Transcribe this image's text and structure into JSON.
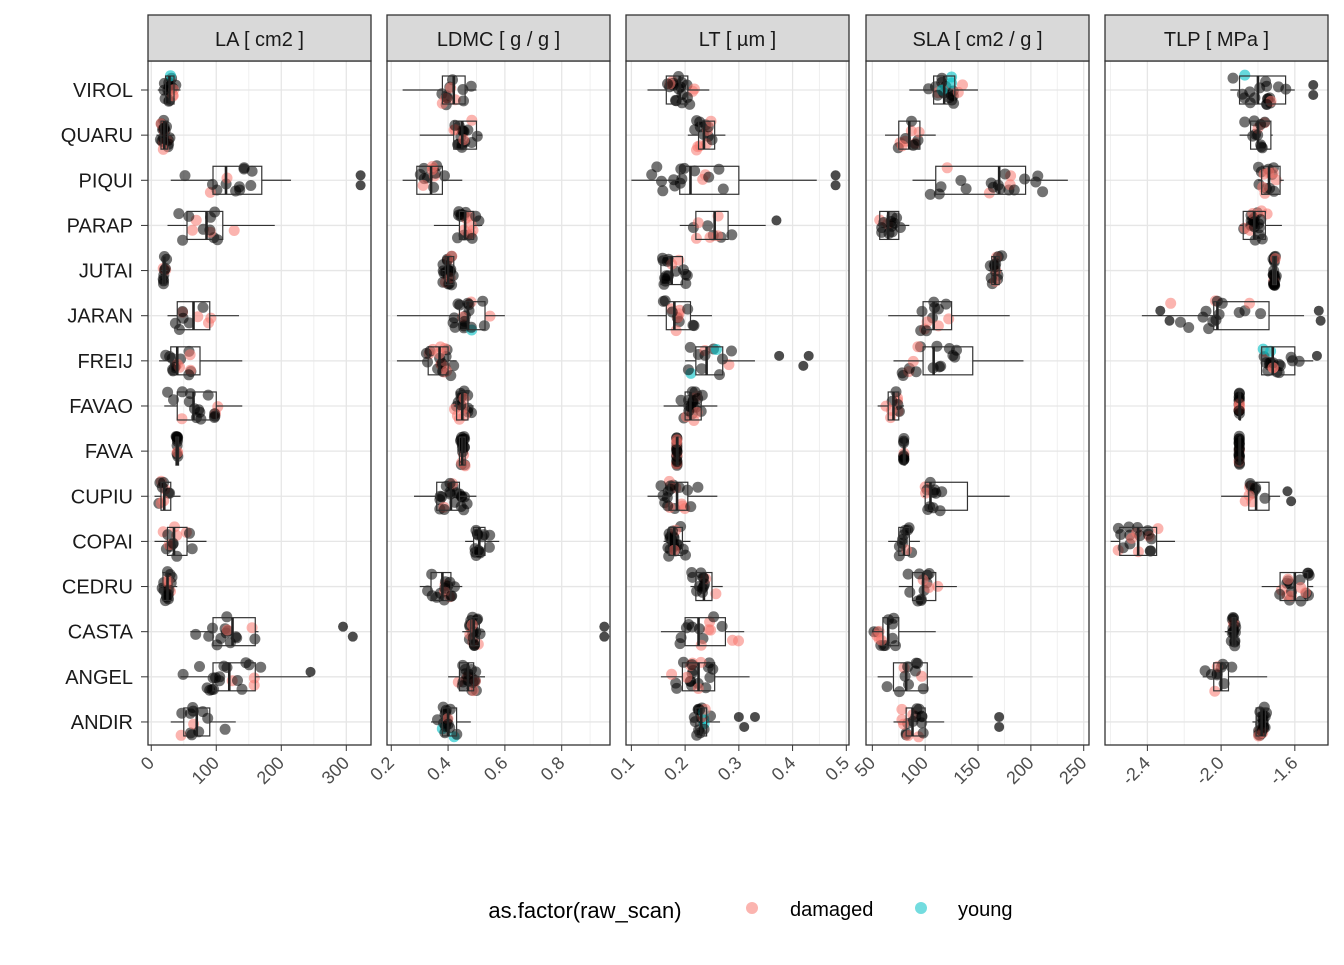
{
  "chart_data": {
    "type": "faceted boxplot with jittered points",
    "species": [
      "VIROL",
      "QUARU",
      "PIQUI",
      "PARAP",
      "JUTAI",
      "JARAN",
      "FREIJ",
      "FAVAO",
      "FAVA",
      "CUPIU",
      "COPAI",
      "CEDRU",
      "CASTA",
      "ANGEL",
      "ANDIR"
    ],
    "legend": {
      "title": "as.factor(raw_scan)",
      "entries": [
        {
          "label": "damaged",
          "color": "#F8766D"
        },
        {
          "label": "young",
          "color": "#00BFC4"
        }
      ],
      "position": "bottom"
    },
    "colors": {
      "normal": "#000000",
      "damaged": "#F8766D",
      "young": "#00BFC4",
      "strip_fill": "#D9D9D9"
    },
    "grid": true,
    "facets": [
      {
        "title": "LA [ cm2 ]",
        "xlim": [
          -5,
          338
        ],
        "ticks": [
          0,
          100,
          200,
          300
        ],
        "tick_labels": [
          "0",
          "100",
          "200",
          "300"
        ],
        "boxes": [
          {
            "species": "VIROL",
            "q1": 22,
            "med": 28,
            "q3": 35,
            "lo": 10,
            "hi": 45
          },
          {
            "species": "QUARU",
            "q1": 15,
            "med": 20,
            "q3": 25,
            "lo": 8,
            "hi": 35
          },
          {
            "species": "PIQUI",
            "q1": 95,
            "med": 115,
            "q3": 170,
            "lo": 30,
            "hi": 215
          },
          {
            "species": "PARAP",
            "q1": 55,
            "med": 85,
            "q3": 110,
            "lo": 25,
            "hi": 190
          },
          {
            "species": "JUTAI",
            "q1": 18,
            "med": 20,
            "q3": 22,
            "lo": 15,
            "hi": 25
          },
          {
            "species": "JARAN",
            "q1": 40,
            "med": 65,
            "q3": 90,
            "lo": 25,
            "hi": 135
          },
          {
            "species": "FREIJ",
            "q1": 30,
            "med": 40,
            "q3": 75,
            "lo": 12,
            "hi": 140
          },
          {
            "species": "FAVAO",
            "q1": 40,
            "med": 65,
            "q3": 100,
            "lo": 20,
            "hi": 140
          },
          {
            "species": "FAVA",
            "q1": 38,
            "med": 40,
            "q3": 42,
            "lo": 38,
            "hi": 42
          },
          {
            "species": "CUPIU",
            "q1": 15,
            "med": 20,
            "q3": 30,
            "lo": 5,
            "hi": 45
          },
          {
            "species": "COPAI",
            "q1": 25,
            "med": 35,
            "q3": 55,
            "lo": 5,
            "hi": 85
          },
          {
            "species": "CEDRU",
            "q1": 18,
            "med": 25,
            "q3": 32,
            "lo": 12,
            "hi": 40
          },
          {
            "species": "CASTA",
            "q1": 95,
            "med": 125,
            "q3": 160,
            "lo": 60,
            "hi": 165
          },
          {
            "species": "ANGEL",
            "q1": 95,
            "med": 120,
            "q3": 160,
            "lo": 45,
            "hi": 245
          },
          {
            "species": "ANDIR",
            "q1": 50,
            "med": 70,
            "q3": 90,
            "lo": 30,
            "hi": 130
          }
        ],
        "extra_points": [
          {
            "species": "PIQUI",
            "values": [
              322,
              322
            ]
          },
          {
            "species": "CASTA",
            "values": [
              295,
              310
            ]
          },
          {
            "species": "ANGEL",
            "values": [
              245
            ]
          }
        ]
      },
      {
        "title": "LDMC [ g / g ]",
        "xlim": [
          0.185,
          0.97
        ],
        "ticks": [
          0.2,
          0.4,
          0.6,
          0.8
        ],
        "tick_labels": [
          "0.2",
          "0.4",
          "0.6",
          "0.8"
        ],
        "boxes": [
          {
            "species": "VIROL",
            "q1": 0.38,
            "med": 0.42,
            "q3": 0.46,
            "lo": 0.24,
            "hi": 0.5
          },
          {
            "species": "QUARU",
            "q1": 0.42,
            "med": 0.45,
            "q3": 0.5,
            "lo": 0.3,
            "hi": 0.52
          },
          {
            "species": "PIQUI",
            "q1": 0.29,
            "med": 0.34,
            "q3": 0.38,
            "lo": 0.24,
            "hi": 0.45
          },
          {
            "species": "PARAP",
            "q1": 0.44,
            "med": 0.46,
            "q3": 0.49,
            "lo": 0.35,
            "hi": 0.52
          },
          {
            "species": "JUTAI",
            "q1": 0.39,
            "med": 0.4,
            "q3": 0.42,
            "lo": 0.38,
            "hi": 0.42
          },
          {
            "species": "JARAN",
            "q1": 0.44,
            "med": 0.47,
            "q3": 0.53,
            "lo": 0.22,
            "hi": 0.6
          },
          {
            "species": "FREIJ",
            "q1": 0.33,
            "med": 0.37,
            "q3": 0.4,
            "lo": 0.22,
            "hi": 0.43
          },
          {
            "species": "FAVAO",
            "q1": 0.43,
            "med": 0.45,
            "q3": 0.47,
            "lo": 0.42,
            "hi": 0.49
          },
          {
            "species": "FAVA",
            "q1": 0.44,
            "med": 0.45,
            "q3": 0.46,
            "lo": 0.44,
            "hi": 0.46
          },
          {
            "species": "CUPIU",
            "q1": 0.36,
            "med": 0.41,
            "q3": 0.44,
            "lo": 0.28,
            "hi": 0.5
          },
          {
            "species": "COPAI",
            "q1": 0.49,
            "med": 0.51,
            "q3": 0.53,
            "lo": 0.46,
            "hi": 0.58
          },
          {
            "species": "CEDRU",
            "q1": 0.34,
            "med": 0.38,
            "q3": 0.41,
            "lo": 0.3,
            "hi": 0.45
          },
          {
            "species": "CASTA",
            "q1": 0.48,
            "med": 0.49,
            "q3": 0.51,
            "lo": 0.45,
            "hi": 0.53
          },
          {
            "species": "ANGEL",
            "q1": 0.44,
            "med": 0.47,
            "q3": 0.49,
            "lo": 0.4,
            "hi": 0.53
          },
          {
            "species": "ANDIR",
            "q1": 0.38,
            "med": 0.4,
            "q3": 0.43,
            "lo": 0.34,
            "hi": 0.48
          }
        ],
        "extra_points": [
          {
            "species": "CASTA",
            "values": [
              0.95,
              0.95
            ]
          }
        ]
      },
      {
        "title": "LT [ µm ]",
        "xlim": [
          0.09,
          0.505
        ],
        "ticks": [
          0.1,
          0.2,
          0.3,
          0.4,
          0.5
        ],
        "tick_labels": [
          "0.1",
          "0.2",
          "0.3",
          "0.4",
          "0.5"
        ],
        "boxes": [
          {
            "species": "VIROL",
            "q1": 0.165,
            "med": 0.19,
            "q3": 0.205,
            "lo": 0.13,
            "hi": 0.245
          },
          {
            "species": "QUARU",
            "q1": 0.225,
            "med": 0.235,
            "q3": 0.255,
            "lo": 0.205,
            "hi": 0.275
          },
          {
            "species": "PIQUI",
            "q1": 0.19,
            "med": 0.21,
            "q3": 0.3,
            "lo": 0.1,
            "hi": 0.445
          },
          {
            "species": "PARAP",
            "q1": 0.22,
            "med": 0.255,
            "q3": 0.28,
            "lo": 0.19,
            "hi": 0.35
          },
          {
            "species": "JUTAI",
            "q1": 0.155,
            "med": 0.175,
            "q3": 0.195,
            "lo": 0.155,
            "hi": 0.205
          },
          {
            "species": "JARAN",
            "q1": 0.165,
            "med": 0.18,
            "q3": 0.21,
            "lo": 0.13,
            "hi": 0.25
          },
          {
            "species": "FREIJ",
            "q1": 0.22,
            "med": 0.24,
            "q3": 0.27,
            "lo": 0.2,
            "hi": 0.33
          },
          {
            "species": "FAVAO",
            "q1": 0.2,
            "med": 0.21,
            "q3": 0.23,
            "lo": 0.16,
            "hi": 0.26
          },
          {
            "species": "FAVA",
            "q1": 0.185,
            "med": 0.185,
            "q3": 0.185,
            "lo": 0.185,
            "hi": 0.185
          },
          {
            "species": "CUPIU",
            "q1": 0.17,
            "med": 0.185,
            "q3": 0.205,
            "lo": 0.13,
            "hi": 0.26
          },
          {
            "species": "COPAI",
            "q1": 0.17,
            "med": 0.18,
            "q3": 0.195,
            "lo": 0.16,
            "hi": 0.21
          },
          {
            "species": "CEDRU",
            "q1": 0.22,
            "med": 0.235,
            "q3": 0.25,
            "lo": 0.21,
            "hi": 0.27
          },
          {
            "species": "CASTA",
            "q1": 0.2,
            "med": 0.225,
            "q3": 0.275,
            "lo": 0.155,
            "hi": 0.31
          },
          {
            "species": "ANGEL",
            "q1": 0.195,
            "med": 0.225,
            "q3": 0.255,
            "lo": 0.155,
            "hi": 0.32
          },
          {
            "species": "ANDIR",
            "q1": 0.22,
            "med": 0.23,
            "q3": 0.24,
            "lo": 0.21,
            "hi": 0.265
          }
        ],
        "extra_points": [
          {
            "species": "PIQUI",
            "values": [
              0.48,
              0.48
            ]
          },
          {
            "species": "PARAP",
            "values": [
              0.37
            ]
          },
          {
            "species": "FREIJ",
            "values": [
              0.375,
              0.42,
              0.43
            ]
          },
          {
            "species": "ANDIR",
            "values": [
              0.3,
              0.31,
              0.33
            ]
          }
        ]
      },
      {
        "title": "SLA [ cm2 / g ]",
        "xlim": [
          44,
          255
        ],
        "ticks": [
          50,
          100,
          150,
          200,
          250
        ],
        "tick_labels": [
          "50",
          "100",
          "150",
          "200",
          "250"
        ],
        "boxes": [
          {
            "species": "VIROL",
            "q1": 108,
            "med": 118,
            "q3": 128,
            "lo": 85,
            "hi": 150
          },
          {
            "species": "QUARU",
            "q1": 75,
            "med": 85,
            "q3": 95,
            "lo": 62,
            "hi": 110
          },
          {
            "species": "PIQUI",
            "q1": 110,
            "med": 170,
            "q3": 195,
            "lo": 88,
            "hi": 235
          },
          {
            "species": "PARAP",
            "q1": 57,
            "med": 65,
            "q3": 75,
            "lo": 55,
            "hi": 85
          },
          {
            "species": "JUTAI",
            "q1": 163,
            "med": 166,
            "q3": 170,
            "lo": 160,
            "hi": 173
          },
          {
            "species": "JARAN",
            "q1": 98,
            "med": 108,
            "q3": 125,
            "lo": 65,
            "hi": 180
          },
          {
            "species": "FREIJ",
            "q1": 98,
            "med": 108,
            "q3": 145,
            "lo": 70,
            "hi": 193
          },
          {
            "species": "FAVAO",
            "q1": 65,
            "med": 70,
            "q3": 75,
            "lo": 55,
            "hi": 80
          },
          {
            "species": "FAVA",
            "q1": 80,
            "med": 80,
            "q3": 80,
            "lo": 80,
            "hi": 80
          },
          {
            "species": "CUPIU",
            "q1": 100,
            "med": 105,
            "q3": 140,
            "lo": 98,
            "hi": 180
          },
          {
            "species": "COPAI",
            "q1": 75,
            "med": 80,
            "q3": 85,
            "lo": 65,
            "hi": 95
          },
          {
            "species": "CEDRU",
            "q1": 88,
            "med": 98,
            "q3": 110,
            "lo": 75,
            "hi": 130
          },
          {
            "species": "CASTA",
            "q1": 60,
            "med": 65,
            "q3": 75,
            "lo": 50,
            "hi": 110
          },
          {
            "species": "ANGEL",
            "q1": 70,
            "med": 82,
            "q3": 102,
            "lo": 55,
            "hi": 145
          },
          {
            "species": "ANDIR",
            "q1": 82,
            "med": 88,
            "q3": 100,
            "lo": 70,
            "hi": 118
          }
        ],
        "extra_points": [
          {
            "species": "ANDIR",
            "values": [
              170,
              170
            ]
          }
        ]
      },
      {
        "title": "TLP [ MPa ]",
        "xlim": [
          -2.63,
          -1.42
        ],
        "ticks": [
          -2.4,
          -2.0,
          -1.6
        ],
        "tick_labels": [
          "-2.4",
          "-2.0",
          "-1.6"
        ],
        "boxes": [
          {
            "species": "VIROL",
            "q1": -1.9,
            "med": -1.8,
            "q3": -1.65,
            "lo": -1.95,
            "hi": -1.6
          },
          {
            "species": "QUARU",
            "q1": -1.84,
            "med": -1.8,
            "q3": -1.73,
            "lo": -1.9,
            "hi": -1.72
          },
          {
            "species": "PIQUI",
            "q1": -1.78,
            "med": -1.74,
            "q3": -1.68,
            "lo": -1.8,
            "hi": -1.66
          },
          {
            "species": "PARAP",
            "q1": -1.88,
            "med": -1.82,
            "q3": -1.76,
            "lo": -1.9,
            "hi": -1.67
          },
          {
            "species": "JUTAI",
            "q1": -1.72,
            "med": -1.71,
            "q3": -1.7,
            "lo": -1.72,
            "hi": -1.7
          },
          {
            "species": "JARAN",
            "q1": -2.04,
            "med": -2.02,
            "q3": -1.74,
            "lo": -2.43,
            "hi": -1.55
          },
          {
            "species": "FREIJ",
            "q1": -1.78,
            "med": -1.72,
            "q3": -1.6,
            "lo": -1.78,
            "hi": -1.5
          },
          {
            "species": "FAVAO",
            "q1": -1.9,
            "med": -1.9,
            "q3": -1.9,
            "lo": -1.9,
            "hi": -1.9
          },
          {
            "species": "FAVA",
            "q1": -1.9,
            "med": -1.9,
            "q3": -1.9,
            "lo": -1.9,
            "hi": -1.9
          },
          {
            "species": "CUPIU",
            "q1": -1.85,
            "med": -1.81,
            "q3": -1.74,
            "lo": -2.0,
            "hi": -1.68
          },
          {
            "species": "COPAI",
            "q1": -2.55,
            "med": -2.45,
            "q3": -2.35,
            "lo": -2.6,
            "hi": -2.25
          },
          {
            "species": "CEDRU",
            "q1": -1.68,
            "med": -1.6,
            "q3": -1.53,
            "lo": -1.78,
            "hi": -1.5
          },
          {
            "species": "CASTA",
            "q1": -1.94,
            "med": -1.93,
            "q3": -1.92,
            "lo": -1.98,
            "hi": -1.92
          },
          {
            "species": "ANGEL",
            "q1": -2.04,
            "med": -2.0,
            "q3": -1.96,
            "lo": -2.1,
            "hi": -1.75
          },
          {
            "species": "ANDIR",
            "q1": -1.81,
            "med": -1.78,
            "q3": -1.76,
            "lo": -1.83,
            "hi": -1.75
          }
        ],
        "extra_points": [
          {
            "species": "VIROL",
            "values": [
              -1.5,
              -1.5
            ]
          },
          {
            "species": "JARAN",
            "values": [
              -2.33,
              -2.28,
              -1.47,
              -1.46
            ]
          },
          {
            "species": "FREIJ",
            "values": [
              -1.48
            ]
          },
          {
            "species": "CUPIU",
            "values": [
              -1.64,
              -1.62
            ]
          }
        ]
      }
    ]
  }
}
